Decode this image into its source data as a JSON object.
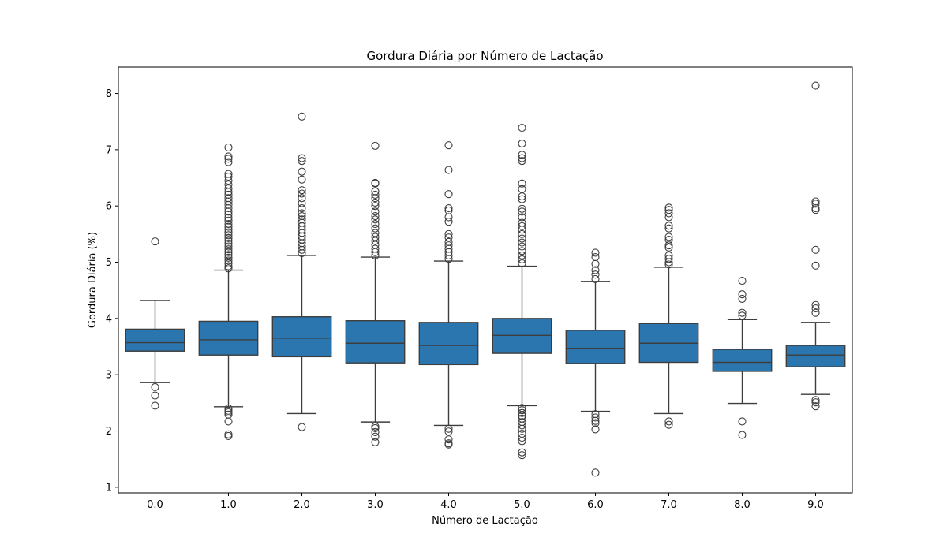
{
  "chart_data": {
    "type": "box",
    "title": "Gordura Diária por Número de Lactação",
    "xlabel": "Número de Lactação",
    "ylabel": "Gordura Diária (%)",
    "ylim": [
      0.9,
      8.47
    ],
    "yticks": [
      1,
      2,
      3,
      4,
      5,
      6,
      7,
      8
    ],
    "grid": false,
    "categories": [
      "0.0",
      "1.0",
      "2.0",
      "3.0",
      "4.0",
      "5.0",
      "6.0",
      "7.0",
      "8.0",
      "9.0"
    ],
    "boxes": [
      {
        "category": "0.0",
        "whisker_low": 2.86,
        "q1": 3.42,
        "median": 3.57,
        "q3": 3.81,
        "whisker_high": 4.32,
        "outliers": [
          5.37,
          2.78,
          2.63,
          2.45
        ]
      },
      {
        "category": "1.0",
        "whisker_low": 2.43,
        "q1": 3.35,
        "median": 3.62,
        "q3": 3.95,
        "whisker_high": 4.86,
        "outliers": [
          7.04,
          6.88,
          6.84,
          6.78,
          6.57,
          6.52,
          6.45,
          6.38,
          6.31,
          6.25,
          6.2,
          6.14,
          6.08,
          6.02,
          5.96,
          5.9,
          5.85,
          5.79,
          5.74,
          5.68,
          5.63,
          5.58,
          5.53,
          5.48,
          5.43,
          5.38,
          5.33,
          5.28,
          5.23,
          5.18,
          5.13,
          5.08,
          5.03,
          4.98,
          4.93,
          4.89,
          2.4,
          2.36,
          2.33,
          2.29,
          2.17,
          1.94,
          1.91
        ]
      },
      {
        "category": "2.0",
        "whisker_low": 2.31,
        "q1": 3.32,
        "median": 3.65,
        "q3": 4.03,
        "whisker_high": 5.12,
        "outliers": [
          7.59,
          6.85,
          6.8,
          6.61,
          6.47,
          6.28,
          6.22,
          6.14,
          6.05,
          5.96,
          5.87,
          5.82,
          5.76,
          5.7,
          5.64,
          5.58,
          5.52,
          5.46,
          5.4,
          5.34,
          5.28,
          5.22,
          5.16,
          2.07
        ]
      },
      {
        "category": "3.0",
        "whisker_low": 2.16,
        "q1": 3.21,
        "median": 3.56,
        "q3": 3.96,
        "whisker_high": 5.09,
        "outliers": [
          7.07,
          6.41,
          6.4,
          6.26,
          6.2,
          6.14,
          6.06,
          6.0,
          5.9,
          5.82,
          5.76,
          5.68,
          5.6,
          5.52,
          5.45,
          5.38,
          5.31,
          5.24,
          5.18,
          5.12,
          2.08,
          2.05,
          1.98,
          1.9,
          1.8
        ]
      },
      {
        "category": "4.0",
        "whisker_low": 2.1,
        "q1": 3.18,
        "median": 3.52,
        "q3": 3.93,
        "whisker_high": 5.02,
        "outliers": [
          7.08,
          6.64,
          6.21,
          5.96,
          5.92,
          5.8,
          5.72,
          5.5,
          5.44,
          5.36,
          5.3,
          5.24,
          5.18,
          5.12,
          5.06,
          2.04,
          1.99,
          1.85,
          1.78,
          1.76
        ]
      },
      {
        "category": "5.0",
        "whisker_low": 2.45,
        "q1": 3.38,
        "median": 3.7,
        "q3": 4.0,
        "whisker_high": 4.93,
        "outliers": [
          7.39,
          7.11,
          6.91,
          6.85,
          6.8,
          6.4,
          6.3,
          6.17,
          6.12,
          5.95,
          5.9,
          5.8,
          5.7,
          5.64,
          5.58,
          5.5,
          5.42,
          5.35,
          5.28,
          5.2,
          5.12,
          5.05,
          4.98,
          2.41,
          2.37,
          2.32,
          2.27,
          2.22,
          2.16,
          2.1,
          2.04,
          1.95,
          1.88,
          1.82,
          1.62,
          1.57
        ]
      },
      {
        "category": "6.0",
        "whisker_low": 2.35,
        "q1": 3.2,
        "median": 3.47,
        "q3": 3.79,
        "whisker_high": 4.66,
        "outliers": [
          5.17,
          5.09,
          4.97,
          4.86,
          4.78,
          4.7,
          2.3,
          2.24,
          2.18,
          2.14,
          2.03,
          1.26
        ]
      },
      {
        "category": "7.0",
        "whisker_low": 2.31,
        "q1": 3.22,
        "median": 3.56,
        "q3": 3.91,
        "whisker_high": 4.91,
        "outliers": [
          5.97,
          5.93,
          5.87,
          5.8,
          5.65,
          5.6,
          5.45,
          5.4,
          5.3,
          5.26,
          5.12,
          5.06,
          5.0,
          4.96,
          2.17,
          2.11
        ]
      },
      {
        "category": "8.0",
        "whisker_low": 2.49,
        "q1": 3.06,
        "median": 3.22,
        "q3": 3.45,
        "whisker_high": 3.98,
        "outliers": [
          4.67,
          4.43,
          4.35,
          4.1,
          4.05,
          2.17,
          1.93
        ]
      },
      {
        "category": "9.0",
        "whisker_low": 2.65,
        "q1": 3.14,
        "median": 3.35,
        "q3": 3.52,
        "whisker_high": 3.93,
        "outliers": [
          8.14,
          6.08,
          6.04,
          5.96,
          5.93,
          5.22,
          4.94,
          4.24,
          4.18,
          4.1,
          2.55,
          2.51,
          2.44
        ]
      }
    ],
    "colors": {
      "box_fill": "#2c76b0",
      "line": "#3d3d3d",
      "outlier_edge": "#3d3d3d"
    }
  }
}
